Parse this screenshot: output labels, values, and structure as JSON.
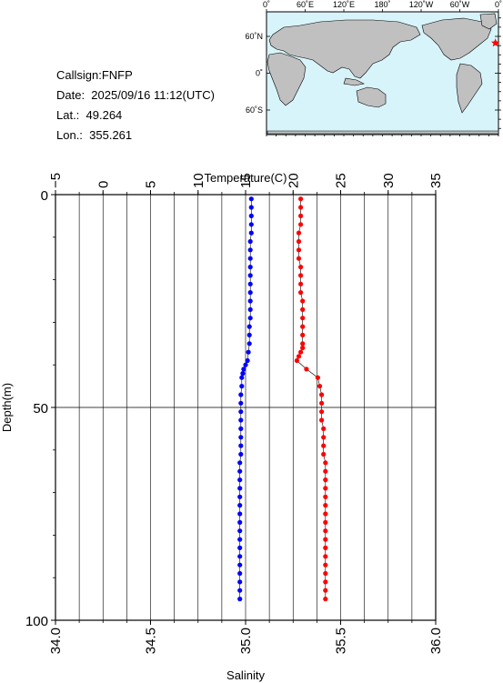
{
  "meta": {
    "callsign": "Callsign:FNFP",
    "date": "Date:  2025/09/16 11:12(UTC)",
    "lat": "Lat.:  49.264",
    "lon": "Lon.:  355.261"
  },
  "map": {
    "lon_labels": [
      "0˚",
      "60˚E",
      "120˚E",
      "180˚",
      "120˚W",
      "60˚W",
      "0˚"
    ],
    "lat_labels": [
      "60˚N",
      "0˚",
      "60˚S"
    ],
    "ocean_color": "#d8f4fb",
    "land_color": "#c0c0c0",
    "marker_color": "#ff0000",
    "marker_lon": 355.261,
    "marker_lat": 49.264
  },
  "chart_data": {
    "type": "line",
    "ylabel": "Depth(m)",
    "ylim": [
      100,
      0
    ],
    "y_ticks": [
      "0",
      "50",
      "100"
    ],
    "top_axis": {
      "label": "Temperature(C)",
      "range": [
        -5,
        35
      ],
      "ticks": [
        "−5",
        "0",
        "5",
        "10",
        "15",
        "20",
        "25",
        "30",
        "35"
      ]
    },
    "bottom_axis": {
      "label": "Salinity",
      "range": [
        34.0,
        36.0
      ],
      "ticks": [
        "34.0",
        "34.5",
        "35.0",
        "35.5",
        "36.0"
      ]
    },
    "series": [
      {
        "color": "#0000ff",
        "axis": "top",
        "depth": [
          1,
          3,
          5,
          7,
          9,
          11,
          13,
          15,
          17,
          19,
          21,
          23,
          25,
          27,
          29,
          31,
          33,
          35,
          37,
          39,
          40,
          41,
          42,
          43,
          45,
          47,
          49,
          51,
          53,
          55,
          57,
          59,
          61,
          63,
          65,
          67,
          69,
          71,
          73,
          75,
          77,
          79,
          81,
          83,
          85,
          87,
          89,
          91,
          93,
          95
        ],
        "values": [
          15.6,
          15.6,
          15.6,
          15.6,
          15.6,
          15.5,
          15.5,
          15.5,
          15.5,
          15.5,
          15.5,
          15.5,
          15.5,
          15.5,
          15.5,
          15.4,
          15.4,
          15.4,
          15.3,
          15.2,
          15.0,
          14.8,
          14.7,
          14.6,
          14.6,
          14.5,
          14.5,
          14.5,
          14.5,
          14.5,
          14.5,
          14.5,
          14.5,
          14.4,
          14.4,
          14.4,
          14.4,
          14.4,
          14.4,
          14.4,
          14.4,
          14.4,
          14.4,
          14.4,
          14.4,
          14.4,
          14.4,
          14.4,
          14.4,
          14.4
        ]
      },
      {
        "color": "#ff0000",
        "axis": "bottom",
        "depth": [
          1,
          3,
          5,
          7,
          9,
          11,
          13,
          15,
          17,
          19,
          21,
          23,
          25,
          27,
          29,
          31,
          33,
          35,
          36,
          37,
          38,
          39,
          41,
          43,
          45,
          47,
          49,
          51,
          53,
          55,
          57,
          59,
          61,
          63,
          65,
          67,
          69,
          71,
          73,
          75,
          77,
          79,
          81,
          83,
          85,
          87,
          89,
          91,
          93,
          95
        ],
        "values": [
          35.29,
          35.29,
          35.29,
          35.29,
          35.28,
          35.28,
          35.28,
          35.28,
          35.29,
          35.29,
          35.29,
          35.29,
          35.3,
          35.3,
          35.3,
          35.3,
          35.3,
          35.3,
          35.3,
          35.29,
          35.28,
          35.27,
          35.32,
          35.38,
          35.39,
          35.4,
          35.4,
          35.4,
          35.4,
          35.41,
          35.41,
          35.41,
          35.41,
          35.42,
          35.42,
          35.42,
          35.42,
          35.42,
          35.42,
          35.42,
          35.42,
          35.42,
          35.42,
          35.42,
          35.42,
          35.42,
          35.42,
          35.42,
          35.42,
          35.42
        ]
      }
    ],
    "grid": true
  }
}
